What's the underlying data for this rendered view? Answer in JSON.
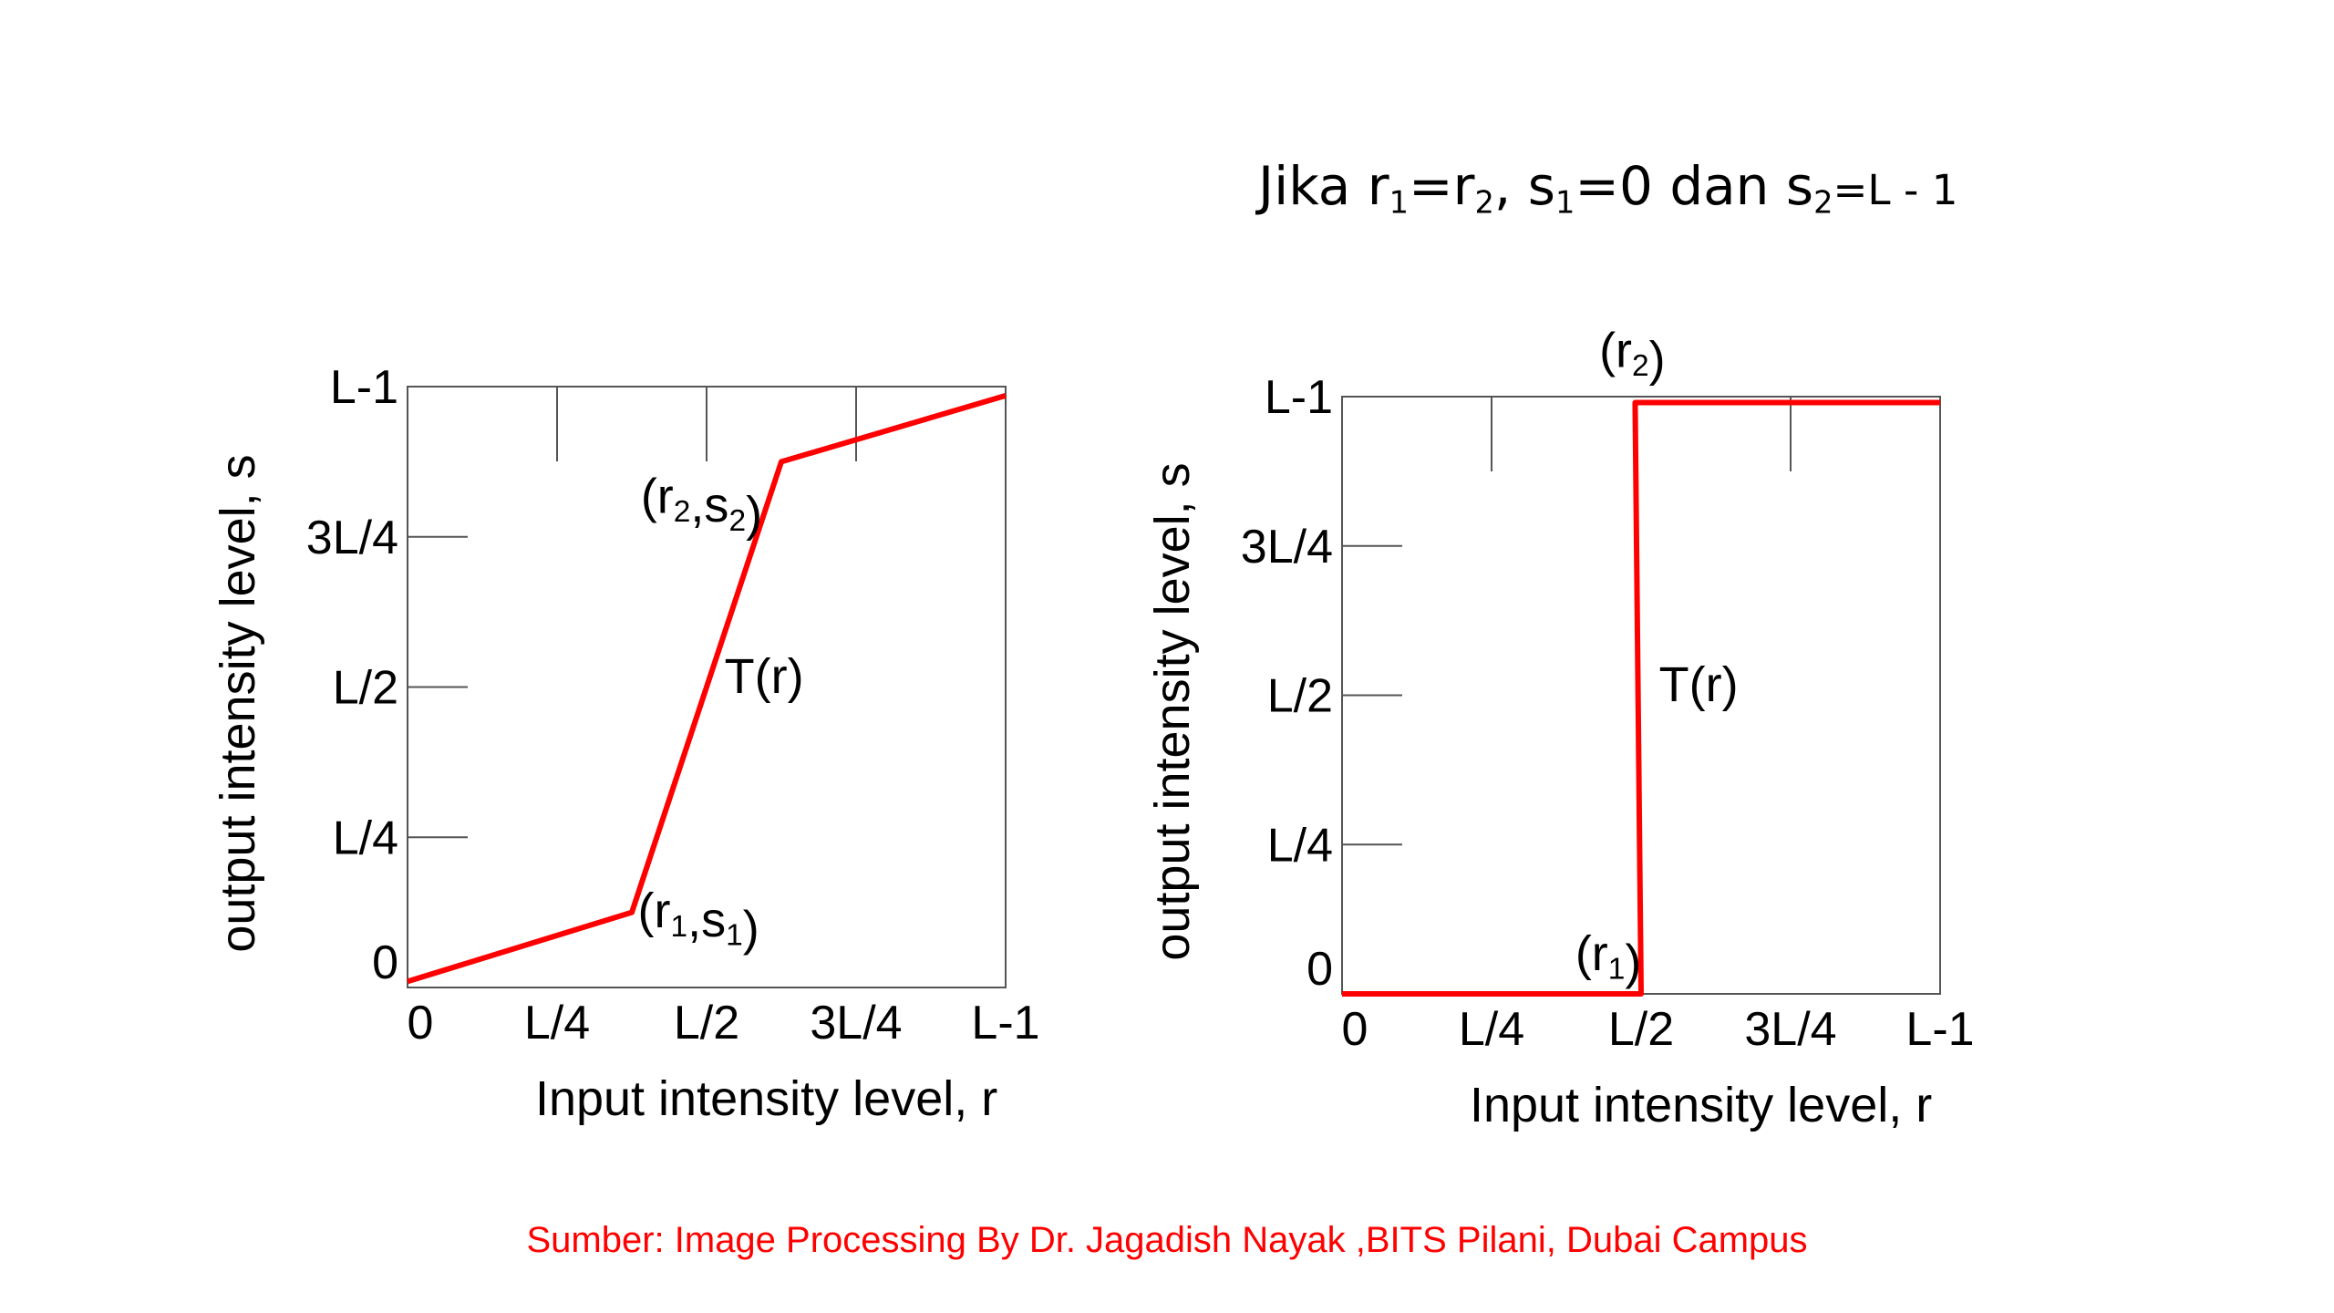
{
  "heading": {
    "prefix": "Jika r",
    "sub1": "1",
    "eq": "=r",
    "sub2": "2",
    "mid": ", s",
    "sub3": "1",
    "mid2": "=0 dan s",
    "sub4": "2",
    "tail": "=L - 1"
  },
  "source": "Sumber: Image Processing By Dr. Jagadish Nayak ,BITS Pilani, Dubai Campus",
  "colors": {
    "curve": "#ff0000",
    "axis": "#555555",
    "text": "#000000",
    "source": "#ff0000"
  },
  "chart_data": [
    {
      "type": "line",
      "xlabel": "Input intensity level, r",
      "ylabel": "output intensity level, s",
      "xlim": [
        0,
        1
      ],
      "ylim": [
        0,
        1
      ],
      "x_ticks": [
        {
          "value": 0,
          "label": "0"
        },
        {
          "value": 0.25,
          "label": "L/4"
        },
        {
          "value": 0.5,
          "label": "L/2"
        },
        {
          "value": 0.75,
          "label": "3L/4"
        },
        {
          "value": 1,
          "label": "L-1"
        }
      ],
      "y_ticks": [
        {
          "value": 0,
          "label": "0"
        },
        {
          "value": 0.25,
          "label": "L/4"
        },
        {
          "value": 0.5,
          "label": "L/2"
        },
        {
          "value": 0.75,
          "label": "3L/4"
        },
        {
          "value": 1,
          "label": "L-1"
        }
      ],
      "series": [
        {
          "x": [
            0,
            0.375,
            0.625,
            1
          ],
          "y": [
            0.01,
            0.125,
            0.875,
            0.985
          ]
        }
      ],
      "annotations": [
        {
          "text": "(r2,s2)",
          "x": 0.39,
          "y": 0.79
        },
        {
          "text": "T(r)",
          "x": 0.53,
          "y": 0.49
        },
        {
          "text": "(r1,s1)",
          "x": 0.385,
          "y": 0.1
        }
      ]
    },
    {
      "type": "line",
      "xlabel": "Input intensity level, r",
      "ylabel": "output intensity level, s",
      "xlim": [
        0,
        1
      ],
      "ylim": [
        0,
        1
      ],
      "x_ticks": [
        {
          "value": 0,
          "label": "0"
        },
        {
          "value": 0.25,
          "label": "L/4"
        },
        {
          "value": 0.5,
          "label": "L/2"
        },
        {
          "value": 0.75,
          "label": "3L/4"
        },
        {
          "value": 1,
          "label": "L-1"
        }
      ],
      "y_ticks": [
        {
          "value": 0,
          "label": "0"
        },
        {
          "value": 0.25,
          "label": "L/4"
        },
        {
          "value": 0.5,
          "label": "L/2"
        },
        {
          "value": 0.75,
          "label": "3L/4"
        },
        {
          "value": 1,
          "label": "L-1"
        }
      ],
      "series": [
        {
          "x": [
            0,
            0.5,
            0.49,
            1
          ],
          "y": [
            0,
            0,
            0.99,
            0.99
          ]
        }
      ],
      "annotations": [
        {
          "text": "(r2)",
          "x": 0.43,
          "y": 1.05
        },
        {
          "text": "T(r)",
          "x": 0.53,
          "y": 0.49
        },
        {
          "text": "(r1)",
          "x": 0.39,
          "y": 0.04
        }
      ]
    }
  ]
}
